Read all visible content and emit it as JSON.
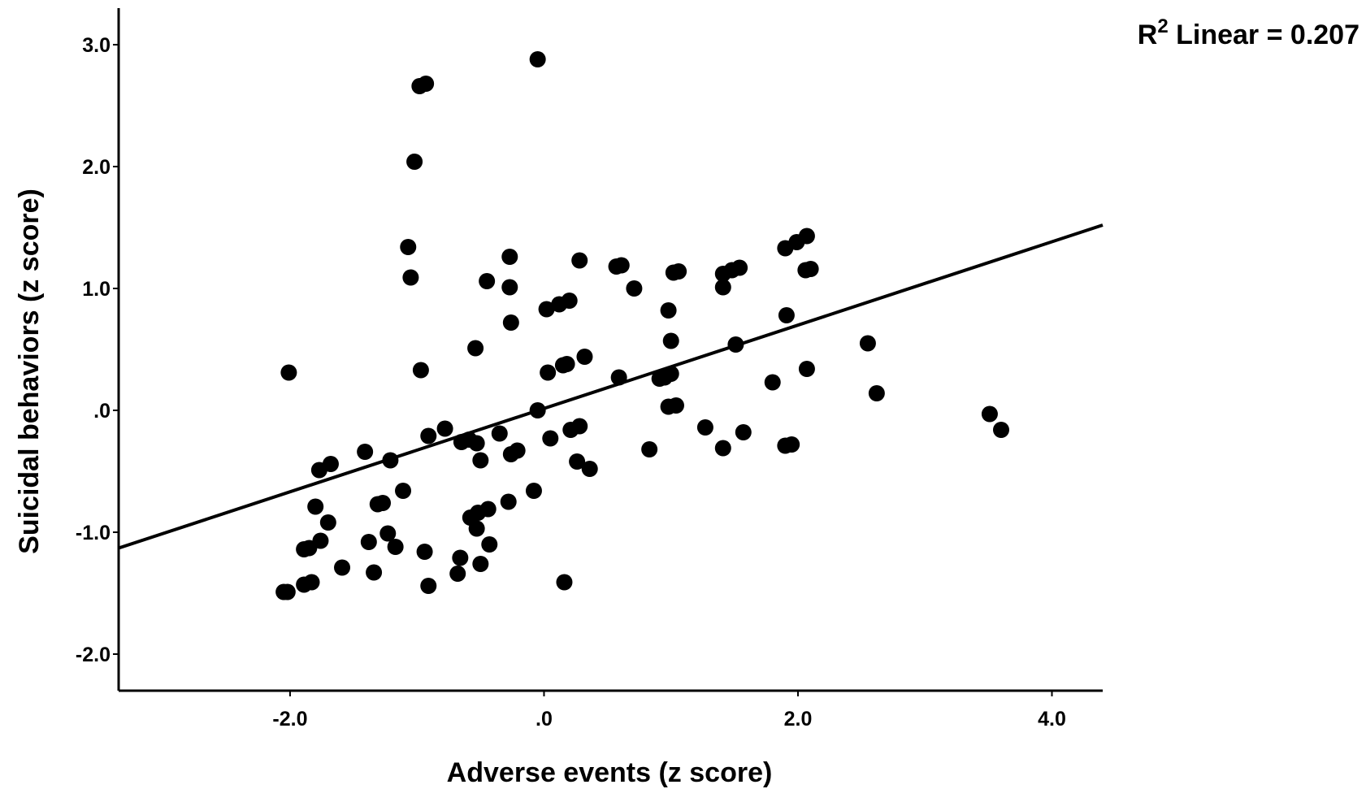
{
  "chart_data": {
    "type": "scatter",
    "xlabel": "Adverse events (z score)",
    "ylabel": "Suicidal behaviors (z score)",
    "xlim": [
      -3.35,
      4.4
    ],
    "ylim": [
      -2.3,
      3.3
    ],
    "x_ticks": [
      -2.0,
      0.0,
      2.0,
      4.0
    ],
    "x_tick_labels": [
      "-2.0",
      ".0",
      "2.0",
      "4.0"
    ],
    "y_ticks": [
      -2.0,
      -1.0,
      0.0,
      1.0,
      2.0,
      3.0
    ],
    "y_tick_labels": [
      "-2.0",
      "-1.0",
      ".0",
      "1.0",
      "2.0",
      "3.0"
    ],
    "grid": false,
    "fit_line": {
      "label_prefix": "R",
      "label_superscript": "2",
      "label_suffix": " Linear = 0.207",
      "x": [
        -3.35,
        4.4
      ],
      "y": [
        -1.13,
        1.52
      ],
      "color": "#000000"
    },
    "marker_color": "#000000",
    "points": [
      [
        -0.05,
        2.88
      ],
      [
        -0.98,
        2.66
      ],
      [
        -0.93,
        2.68
      ],
      [
        -1.02,
        2.04
      ],
      [
        -1.07,
        1.34
      ],
      [
        -1.05,
        1.09
      ],
      [
        -2.01,
        0.31
      ],
      [
        -0.97,
        0.33
      ],
      [
        -0.27,
        1.26
      ],
      [
        -0.45,
        1.06
      ],
      [
        -0.27,
        1.01
      ],
      [
        -0.26,
        0.72
      ],
      [
        -0.54,
        0.51
      ],
      [
        0.02,
        0.83
      ],
      [
        0.12,
        0.87
      ],
      [
        0.2,
        0.9
      ],
      [
        0.28,
        1.23
      ],
      [
        0.57,
        1.18
      ],
      [
        0.61,
        1.19
      ],
      [
        0.71,
        1.0
      ],
      [
        0.98,
        0.82
      ],
      [
        1.02,
        1.13
      ],
      [
        1.06,
        1.14
      ],
      [
        1.41,
        1.12
      ],
      [
        1.41,
        1.01
      ],
      [
        1.48,
        1.15
      ],
      [
        1.54,
        1.17
      ],
      [
        1.9,
        1.33
      ],
      [
        1.99,
        1.38
      ],
      [
        2.07,
        1.43
      ],
      [
        2.06,
        1.15
      ],
      [
        2.1,
        1.16
      ],
      [
        1.91,
        0.78
      ],
      [
        1.0,
        0.57
      ],
      [
        1.51,
        0.54
      ],
      [
        2.55,
        0.55
      ],
      [
        0.03,
        0.31
      ],
      [
        0.15,
        0.37
      ],
      [
        0.18,
        0.38
      ],
      [
        0.32,
        0.44
      ],
      [
        0.59,
        0.27
      ],
      [
        0.91,
        0.26
      ],
      [
        0.95,
        0.27
      ],
      [
        1.0,
        0.3
      ],
      [
        1.8,
        0.23
      ],
      [
        2.07,
        0.34
      ],
      [
        2.62,
        0.14
      ],
      [
        -0.05,
        0.0
      ],
      [
        0.98,
        0.03
      ],
      [
        1.04,
        0.04
      ],
      [
        3.51,
        -0.03
      ],
      [
        3.6,
        -0.16
      ],
      [
        -0.91,
        -0.21
      ],
      [
        -0.78,
        -0.15
      ],
      [
        -0.65,
        -0.26
      ],
      [
        -0.59,
        -0.24
      ],
      [
        -0.53,
        -0.27
      ],
      [
        -0.35,
        -0.19
      ],
      [
        -0.26,
        -0.36
      ],
      [
        -0.21,
        -0.33
      ],
      [
        0.05,
        -0.23
      ],
      [
        0.21,
        -0.16
      ],
      [
        0.28,
        -0.13
      ],
      [
        -0.5,
        -0.41
      ],
      [
        0.26,
        -0.42
      ],
      [
        0.36,
        -0.48
      ],
      [
        0.83,
        -0.32
      ],
      [
        1.27,
        -0.14
      ],
      [
        1.41,
        -0.31
      ],
      [
        1.57,
        -0.18
      ],
      [
        1.9,
        -0.29
      ],
      [
        1.95,
        -0.28
      ],
      [
        -1.41,
        -0.34
      ],
      [
        -1.21,
        -0.41
      ],
      [
        -1.77,
        -0.49
      ],
      [
        -1.68,
        -0.44
      ],
      [
        -1.11,
        -0.66
      ],
      [
        -1.31,
        -0.77
      ],
      [
        -1.27,
        -0.76
      ],
      [
        -1.8,
        -0.79
      ],
      [
        -1.7,
        -0.92
      ],
      [
        -0.08,
        -0.66
      ],
      [
        -0.28,
        -0.75
      ],
      [
        -0.44,
        -0.81
      ],
      [
        -0.52,
        -0.84
      ],
      [
        -0.58,
        -0.88
      ],
      [
        -0.53,
        -0.97
      ],
      [
        -1.23,
        -1.01
      ],
      [
        -1.38,
        -1.08
      ],
      [
        -1.76,
        -1.07
      ],
      [
        -1.89,
        -1.14
      ],
      [
        -1.85,
        -1.13
      ],
      [
        -1.17,
        -1.12
      ],
      [
        -0.94,
        -1.16
      ],
      [
        -0.43,
        -1.1
      ],
      [
        -0.66,
        -1.21
      ],
      [
        -0.5,
        -1.26
      ],
      [
        -1.59,
        -1.29
      ],
      [
        -1.34,
        -1.33
      ],
      [
        -0.68,
        -1.34
      ],
      [
        0.16,
        -1.41
      ],
      [
        -0.91,
        -1.44
      ],
      [
        -1.89,
        -1.43
      ],
      [
        -1.83,
        -1.41
      ],
      [
        -2.02,
        -1.49
      ],
      [
        -2.05,
        -1.49
      ]
    ]
  }
}
